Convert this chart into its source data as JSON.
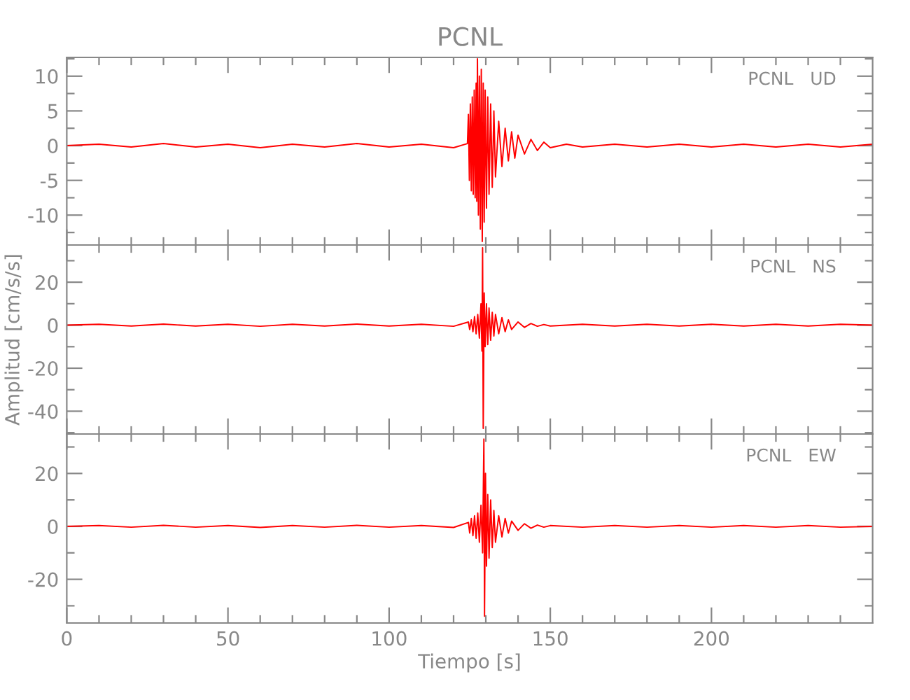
{
  "chart_data": [
    {
      "type": "line",
      "title": "PCNL",
      "annotations": [
        "PCNL   UD"
      ],
      "tick_labels": "y",
      "grid": false,
      "legend": false,
      "marker": "none",
      "line_style": "solid",
      "xlim": [
        0,
        250
      ],
      "xticks": [
        0,
        {
          "value": 10,
          "label": null
        },
        {
          "value": 20,
          "label": null
        },
        {
          "value": 30,
          "label": null
        },
        {
          "value": 40,
          "label": null
        },
        50,
        {
          "value": 60,
          "label": null
        },
        {
          "value": 70,
          "label": null
        },
        {
          "value": 80,
          "label": null
        },
        {
          "value": 90,
          "label": null
        },
        100,
        {
          "value": 110,
          "label": null
        },
        {
          "value": 120,
          "label": null
        },
        {
          "value": 130,
          "label": null
        },
        {
          "value": 140,
          "label": null
        },
        150,
        {
          "value": 160,
          "label": null
        },
        {
          "value": 170,
          "label": null
        },
        {
          "value": 180,
          "label": null
        },
        {
          "value": 190,
          "label": null
        },
        200,
        {
          "value": 210,
          "label": null
        },
        {
          "value": 220,
          "label": null
        },
        {
          "value": 230,
          "label": null
        },
        {
          "value": 240,
          "label": null
        }
      ],
      "ylim": [
        -14.3,
        12.7
      ],
      "yticks": [
        {
          "value": -12.5,
          "label": null
        },
        -10,
        {
          "value": -7.5,
          "label": null
        },
        -5,
        {
          "value": -2.5,
          "label": null
        },
        0,
        {
          "value": 2.5,
          "label": null
        },
        5,
        {
          "value": 7.5,
          "label": null
        },
        10,
        {
          "value": 12.5,
          "label": null
        }
      ],
      "series": [
        {
          "color": "#ff0000",
          "x": [
            0,
            10,
            20,
            30,
            40,
            50,
            60,
            70,
            80,
            90,
            100,
            110,
            120,
            124.3,
            124.6,
            124.9,
            125.2,
            125.5,
            125.8,
            126.1,
            126.4,
            126.7,
            127.0,
            127.2,
            127.4,
            127.7,
            128.0,
            128.3,
            128.6,
            128.9,
            129.2,
            129.5,
            129.8,
            130.2,
            130.6,
            131.0,
            131.5,
            132,
            132.5,
            133,
            134,
            135,
            136,
            137,
            138,
            139,
            140,
            142,
            144,
            146,
            148,
            150,
            155,
            160,
            170,
            180,
            190,
            200,
            210,
            220,
            230,
            240,
            250
          ],
          "values": [
            0,
            0.2,
            -0.2,
            0.3,
            -0.2,
            0.2,
            -0.3,
            0.2,
            -0.2,
            0.3,
            -0.2,
            0.2,
            -0.3,
            0.3,
            4.5,
            -5,
            6,
            -6.5,
            7,
            -7,
            8,
            -7.5,
            9,
            -8,
            12.5,
            -10,
            10,
            -12,
            11,
            -13.8,
            9,
            -11,
            8,
            -9,
            7,
            -7,
            6,
            -6,
            5,
            -4.5,
            3.5,
            -3,
            2.5,
            -2.2,
            2,
            -1.8,
            1.5,
            -1.2,
            0.9,
            -0.7,
            0.5,
            -0.3,
            0.2,
            -0.2,
            0.2,
            -0.2,
            0.2,
            -0.2,
            0.2,
            -0.2,
            0.2,
            -0.2,
            0.2
          ]
        }
      ]
    },
    {
      "type": "line",
      "ylabel": "Amplitud [cm/s/s]",
      "annotations": [
        "PCNL   NS"
      ],
      "tick_labels": "y",
      "grid": false,
      "legend": false,
      "marker": "none",
      "line_style": "solid",
      "xlim": [
        0,
        250
      ],
      "xticks": [
        0,
        {
          "value": 10,
          "label": null
        },
        {
          "value": 20,
          "label": null
        },
        {
          "value": 30,
          "label": null
        },
        {
          "value": 40,
          "label": null
        },
        50,
        {
          "value": 60,
          "label": null
        },
        {
          "value": 70,
          "label": null
        },
        {
          "value": 80,
          "label": null
        },
        {
          "value": 90,
          "label": null
        },
        100,
        {
          "value": 110,
          "label": null
        },
        {
          "value": 120,
          "label": null
        },
        {
          "value": 130,
          "label": null
        },
        {
          "value": 140,
          "label": null
        },
        150,
        {
          "value": 160,
          "label": null
        },
        {
          "value": 170,
          "label": null
        },
        {
          "value": 180,
          "label": null
        },
        {
          "value": 190,
          "label": null
        },
        200,
        {
          "value": 210,
          "label": null
        },
        {
          "value": 220,
          "label": null
        },
        {
          "value": 230,
          "label": null
        },
        {
          "value": 240,
          "label": null
        }
      ],
      "ylim": [
        -50.6,
        37.3
      ],
      "yticks": [
        {
          "value": -50,
          "label": null
        },
        -40,
        {
          "value": -30,
          "label": null
        },
        -20,
        {
          "value": -10,
          "label": null
        },
        0,
        {
          "value": 10,
          "label": null
        },
        20,
        {
          "value": 30,
          "label": null
        }
      ],
      "series": [
        {
          "color": "#ff0000",
          "x": [
            0,
            10,
            20,
            30,
            40,
            50,
            60,
            70,
            80,
            90,
            100,
            110,
            120,
            124.6,
            125,
            125.5,
            126,
            126.5,
            127,
            127.5,
            128,
            128.5,
            128.8,
            129.0,
            129.2,
            129.5,
            129.8,
            130.2,
            130.6,
            131,
            131.5,
            132,
            132.5,
            133,
            134,
            135,
            136,
            137,
            138,
            140,
            142,
            144,
            146,
            148,
            150,
            160,
            170,
            180,
            190,
            200,
            210,
            220,
            230,
            240,
            250
          ],
          "values": [
            0,
            0.4,
            -0.4,
            0.5,
            -0.4,
            0.4,
            -0.5,
            0.4,
            -0.4,
            0.5,
            -0.4,
            0.4,
            -0.5,
            1.5,
            -2,
            2.5,
            -3,
            4,
            -4,
            5,
            -6,
            10,
            -12,
            36,
            -48,
            15,
            -10,
            10,
            -9,
            8,
            -7,
            6,
            -5,
            5,
            -4,
            3.5,
            -3,
            2.5,
            -2,
            1.5,
            -1,
            0.8,
            -0.5,
            0.3,
            -0.4,
            0.4,
            -0.4,
            0.4,
            -0.4,
            0.4,
            -0.4,
            0.4,
            -0.4,
            0.4,
            0
          ]
        }
      ]
    },
    {
      "type": "line",
      "xlabel": "Tiempo [s]",
      "annotations": [
        "PCNL   EW"
      ],
      "grid": false,
      "legend": false,
      "marker": "none",
      "line_style": "solid",
      "xlim": [
        0,
        250
      ],
      "xticks": [
        0,
        {
          "value": 10,
          "label": null
        },
        {
          "value": 20,
          "label": null
        },
        {
          "value": 30,
          "label": null
        },
        {
          "value": 40,
          "label": null
        },
        50,
        {
          "value": 60,
          "label": null
        },
        {
          "value": 70,
          "label": null
        },
        {
          "value": 80,
          "label": null
        },
        {
          "value": 90,
          "label": null
        },
        100,
        {
          "value": 110,
          "label": null
        },
        {
          "value": 120,
          "label": null
        },
        {
          "value": 130,
          "label": null
        },
        {
          "value": 140,
          "label": null
        },
        150,
        {
          "value": 160,
          "label": null
        },
        {
          "value": 170,
          "label": null
        },
        {
          "value": 180,
          "label": null
        },
        {
          "value": 190,
          "label": null
        },
        200,
        {
          "value": 210,
          "label": null
        },
        {
          "value": 220,
          "label": null
        },
        {
          "value": 230,
          "label": null
        },
        {
          "value": 240,
          "label": null
        }
      ],
      "ylim": [
        -36.5,
        34.9
      ],
      "yticks": [
        {
          "value": -30,
          "label": null
        },
        -20,
        {
          "value": -10,
          "label": null
        },
        0,
        {
          "value": 10,
          "label": null
        },
        20,
        {
          "value": 30,
          "label": null
        }
      ],
      "series": [
        {
          "color": "#ff0000",
          "x": [
            0,
            10,
            20,
            30,
            40,
            50,
            60,
            70,
            80,
            90,
            100,
            110,
            120,
            124.6,
            125,
            125.5,
            126,
            126.5,
            127,
            127.5,
            128,
            128.5,
            129,
            129.4,
            129.6,
            129.9,
            130.2,
            130.6,
            131,
            131.5,
            132,
            132.5,
            133,
            134,
            135,
            136,
            137,
            138,
            140,
            142,
            144,
            146,
            148,
            150,
            160,
            170,
            180,
            190,
            200,
            210,
            220,
            230,
            240,
            250
          ],
          "values": [
            0,
            0.3,
            -0.3,
            0.4,
            -0.3,
            0.3,
            -0.4,
            0.3,
            -0.3,
            0.4,
            -0.3,
            0.3,
            -0.4,
            1.5,
            -2.5,
            3,
            -3.5,
            4,
            -4.5,
            5,
            -6,
            8,
            -10,
            33,
            -33.9,
            20,
            -15,
            12,
            -12,
            10,
            -8,
            6,
            -6,
            4,
            -4,
            3,
            -2.5,
            2,
            -1.5,
            1,
            -0.7,
            0.5,
            -0.3,
            0.3,
            -0.3,
            0.3,
            -0.3,
            0.3,
            -0.3,
            0.3,
            -0.3,
            0.3,
            -0.3,
            0
          ]
        }
      ]
    }
  ]
}
